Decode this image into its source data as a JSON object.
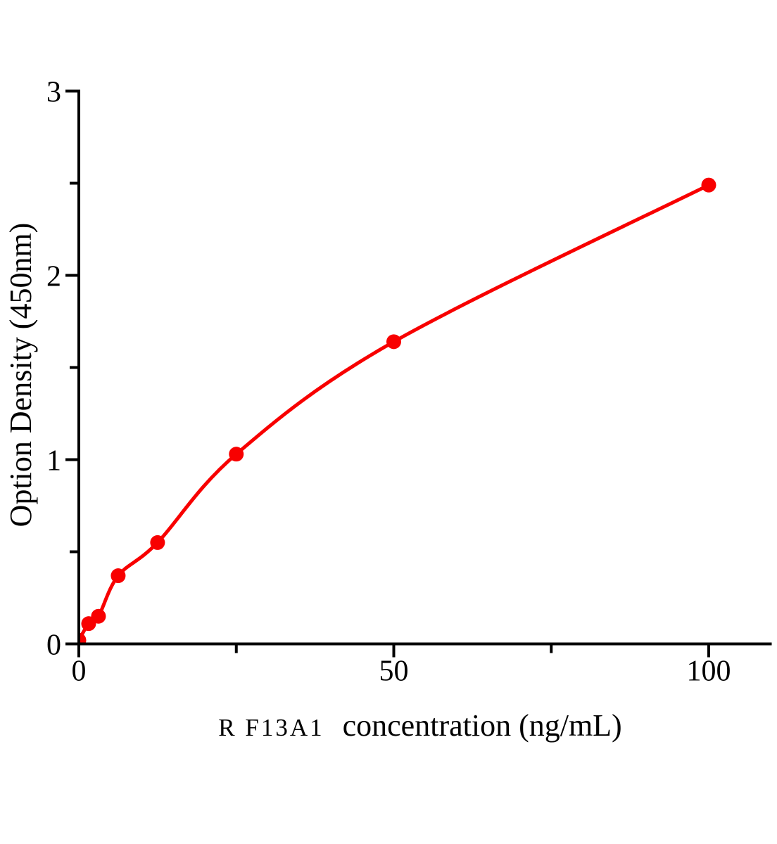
{
  "chart_data": {
    "type": "scatter",
    "subtype": "elisa-standard-curve",
    "x": [
      0,
      1.56,
      3.12,
      6.25,
      12.5,
      25,
      50,
      100
    ],
    "y": [
      0.02,
      0.11,
      0.15,
      0.37,
      0.55,
      1.03,
      1.64,
      2.49
    ],
    "xlabel_prefix": "R F13A1",
    "xlabel_suffix": "concentration（ng/mL）",
    "ylabel": "Option Density（450nm）",
    "xlim": [
      0,
      110
    ],
    "ylim": [
      0,
      3
    ],
    "x_major_ticks": [
      0,
      50,
      100
    ],
    "x_minor_ticks": [
      25,
      75
    ],
    "y_major_ticks": [
      0,
      1,
      2,
      3
    ],
    "y_minor_ticks": [
      0.5,
      1.5,
      2.5
    ],
    "grid": false,
    "legend": "none",
    "line_style": "smooth-fit-through-points",
    "marker": "circle",
    "curve_color": "#f80000",
    "axis_color": "#000000",
    "background_color": "#ffffff"
  }
}
